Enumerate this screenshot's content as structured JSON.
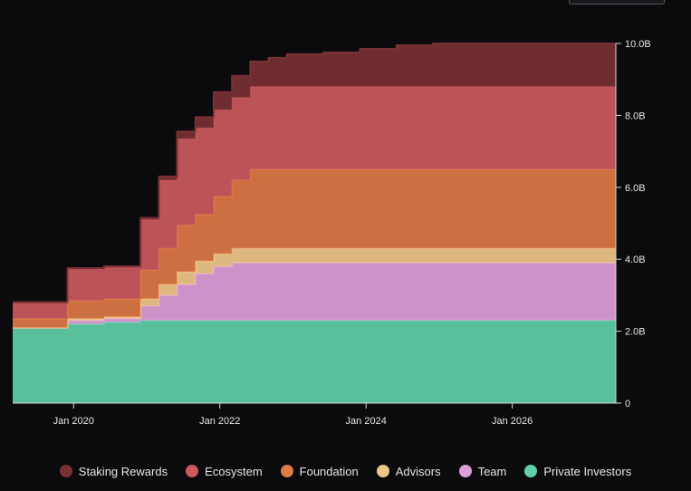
{
  "chart_data": {
    "type": "area",
    "stacked": true,
    "step": true,
    "title": "",
    "xlabel": "",
    "ylabel": "",
    "x_start": "2019-03",
    "x_end": "2027-06",
    "xlim": [
      "2019-03",
      "2027-06"
    ],
    "ylim": [
      0,
      10000000000
    ],
    "y_axis_position": "right",
    "x_ticks": [
      "2020-01",
      "2022-01",
      "2024-01",
      "2026-01"
    ],
    "x_tick_labels": [
      "Jan 2020",
      "Jan 2022",
      "Jan 2024",
      "Jan 2026"
    ],
    "y_ticks": [
      0,
      2000000000,
      4000000000,
      6000000000,
      8000000000,
      10000000000
    ],
    "y_tick_labels": [
      "0",
      "2.0B",
      "4.0B",
      "6.0B",
      "8.0B",
      "10.0B"
    ],
    "grid": false,
    "legend_position": "bottom",
    "x": [
      "2019-03",
      "2019-09",
      "2019-12",
      "2020-06",
      "2020-12",
      "2021-03",
      "2021-06",
      "2021-09",
      "2021-12",
      "2022-03",
      "2022-06",
      "2022-09",
      "2022-12",
      "2023-06",
      "2023-12",
      "2024-06",
      "2024-12",
      "2025-06",
      "2025-12",
      "2026-06",
      "2026-12",
      "2027-06"
    ],
    "series": [
      {
        "name": "Private Investors",
        "color": "#5fd1a8",
        "values": [
          2.1,
          2.1,
          2.2,
          2.25,
          2.3,
          2.3,
          2.3,
          2.3,
          2.3,
          2.3,
          2.3,
          2.3,
          2.3,
          2.3,
          2.3,
          2.3,
          2.3,
          2.3,
          2.3,
          2.3,
          2.3,
          2.3
        ]
      },
      {
        "name": "Team",
        "color": "#de9fd9",
        "values": [
          0.0,
          0.0,
          0.1,
          0.1,
          0.4,
          0.7,
          1.0,
          1.3,
          1.5,
          1.6,
          1.6,
          1.6,
          1.6,
          1.6,
          1.6,
          1.6,
          1.6,
          1.6,
          1.6,
          1.6,
          1.6,
          1.6
        ]
      },
      {
        "name": "Advisors",
        "color": "#efc78a",
        "values": [
          0.0,
          0.0,
          0.05,
          0.05,
          0.2,
          0.3,
          0.35,
          0.35,
          0.35,
          0.4,
          0.4,
          0.4,
          0.4,
          0.4,
          0.4,
          0.4,
          0.4,
          0.4,
          0.4,
          0.4,
          0.4,
          0.4
        ]
      },
      {
        "name": "Foundation",
        "color": "#dd7a45",
        "values": [
          0.25,
          0.25,
          0.5,
          0.5,
          0.8,
          1.0,
          1.3,
          1.3,
          1.6,
          1.9,
          2.2,
          2.2,
          2.2,
          2.2,
          2.2,
          2.2,
          2.2,
          2.2,
          2.2,
          2.2,
          2.2,
          2.2
        ]
      },
      {
        "name": "Ecosystem",
        "color": "#cc5a5f",
        "values": [
          0.45,
          0.45,
          0.9,
          0.9,
          1.4,
          1.9,
          2.4,
          2.4,
          2.4,
          2.3,
          2.3,
          2.3,
          2.3,
          2.3,
          2.3,
          2.3,
          2.3,
          2.3,
          2.3,
          2.3,
          2.3,
          2.3
        ]
      },
      {
        "name": "Staking Rewards",
        "color": "#7a3134",
        "values": [
          0.0,
          0.0,
          0.0,
          0.0,
          0.05,
          0.1,
          0.2,
          0.3,
          0.5,
          0.6,
          0.7,
          0.8,
          0.9,
          0.95,
          1.05,
          1.15,
          1.2,
          1.2,
          1.2,
          1.2,
          1.2,
          1.2
        ]
      }
    ],
    "value_unit": "billions"
  }
}
